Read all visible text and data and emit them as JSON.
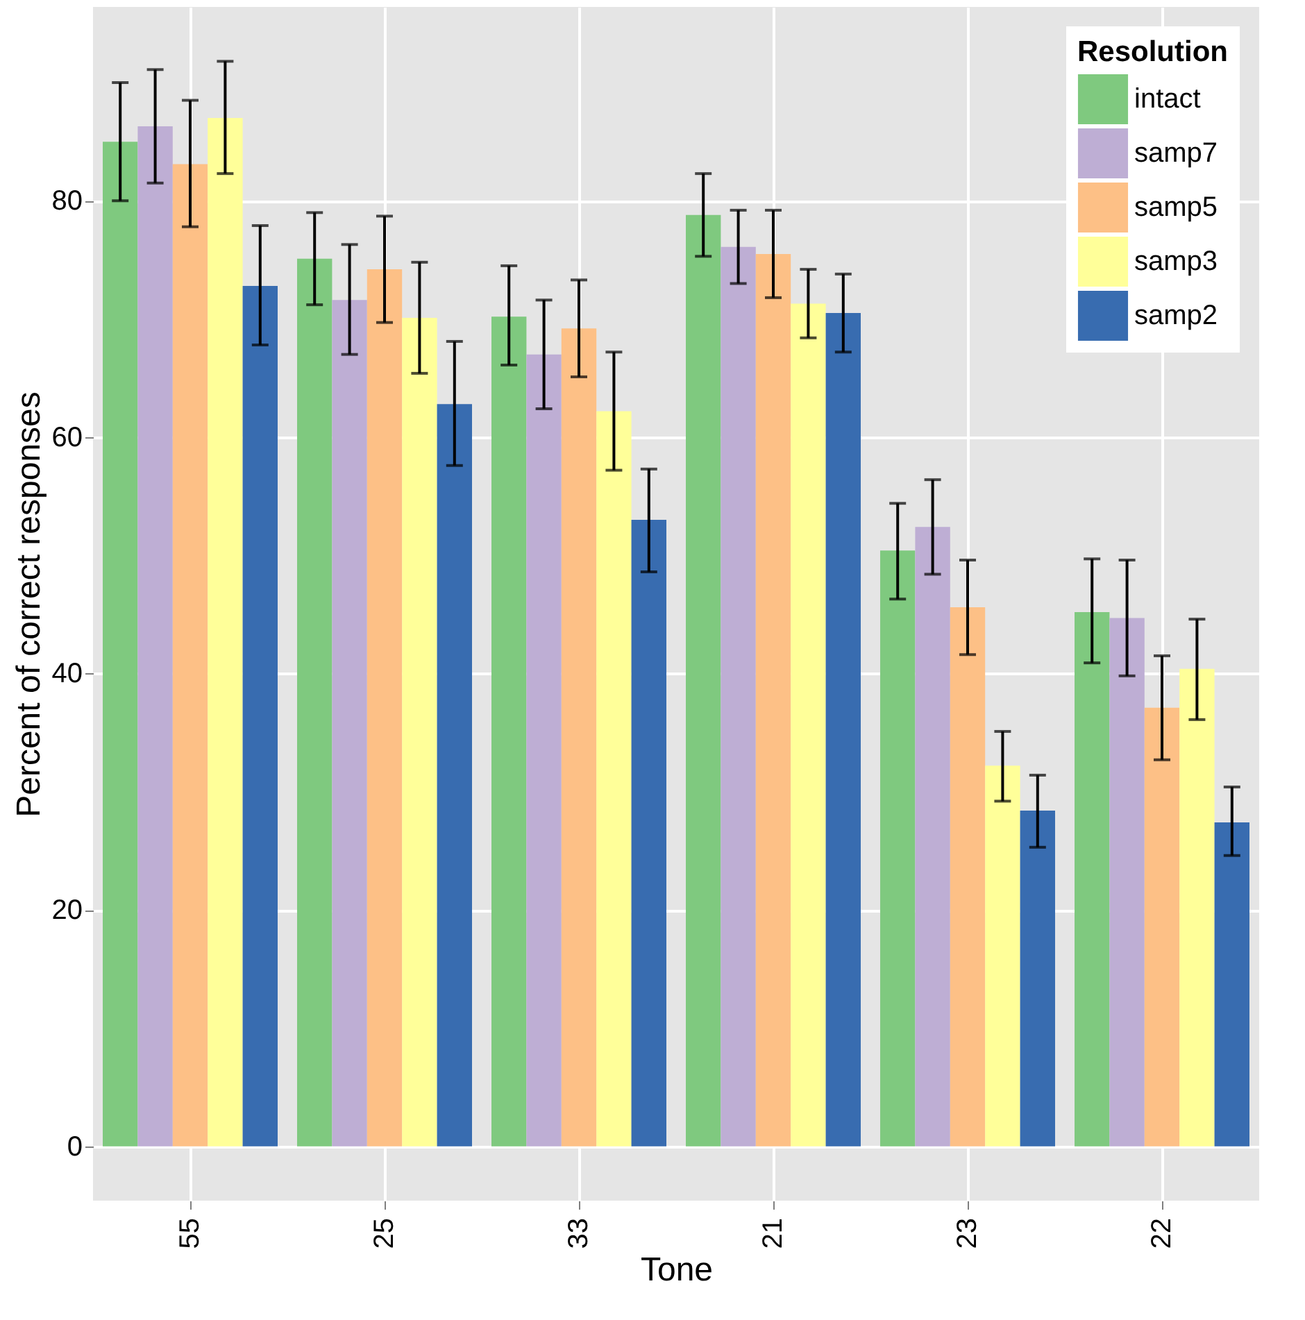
{
  "chart_data": {
    "type": "bar",
    "xlabel": "Tone",
    "ylabel": "Percent of correct responses",
    "legend_title": "Resolution",
    "legend": "top right",
    "grid": true,
    "categories": [
      "55",
      "25",
      "33",
      "21",
      "23",
      "22"
    ],
    "ylim": [
      -4.6,
      96.4
    ],
    "yticks": [
      0,
      20,
      40,
      60,
      80
    ],
    "series": [
      {
        "name": "intact",
        "color": "#7fc97f",
        "values": [
          85.0,
          75.1,
          70.2,
          78.8,
          50.4,
          45.2
        ],
        "errors": [
          [
            80.0,
            90.0
          ],
          [
            71.2,
            79.0
          ],
          [
            66.1,
            74.5
          ],
          [
            75.3,
            82.3
          ],
          [
            46.3,
            54.4
          ],
          [
            40.9,
            49.7
          ]
        ]
      },
      {
        "name": "samp7",
        "color": "#beaed4",
        "values": [
          86.3,
          71.6,
          67.0,
          76.1,
          52.4,
          44.7
        ],
        "errors": [
          [
            81.5,
            91.1
          ],
          [
            67.0,
            76.3
          ],
          [
            62.4,
            71.6
          ],
          [
            73.0,
            79.2
          ],
          [
            48.4,
            56.4
          ],
          [
            39.8,
            49.6
          ]
        ]
      },
      {
        "name": "samp5",
        "color": "#fdc086",
        "values": [
          83.1,
          74.2,
          69.2,
          75.5,
          45.6,
          37.1
        ],
        "errors": [
          [
            77.8,
            88.5
          ],
          [
            69.7,
            78.7
          ],
          [
            65.1,
            73.3
          ],
          [
            71.8,
            79.2
          ],
          [
            41.6,
            49.6
          ],
          [
            32.7,
            41.5
          ]
        ]
      },
      {
        "name": "samp3",
        "color": "#ffff99",
        "values": [
          87.0,
          70.1,
          62.2,
          71.3,
          32.2,
          40.4
        ],
        "errors": [
          [
            82.3,
            91.8
          ],
          [
            65.4,
            74.8
          ],
          [
            57.2,
            67.2
          ],
          [
            68.4,
            74.2
          ],
          [
            29.2,
            35.1
          ],
          [
            36.1,
            44.6
          ]
        ]
      },
      {
        "name": "samp2",
        "color": "#386cb0",
        "values": [
          72.8,
          62.8,
          53.0,
          70.5,
          28.4,
          27.4
        ],
        "errors": [
          [
            67.8,
            77.9
          ],
          [
            57.6,
            68.1
          ],
          [
            48.6,
            57.3
          ],
          [
            67.2,
            73.8
          ],
          [
            25.3,
            31.4
          ],
          [
            24.6,
            30.4
          ]
        ]
      }
    ]
  }
}
